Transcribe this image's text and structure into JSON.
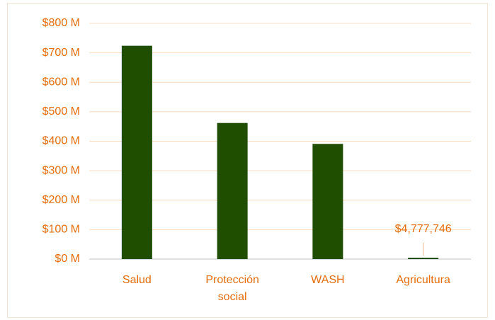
{
  "chart_data": {
    "type": "bar",
    "categories": [
      "Salud",
      "Protección social",
      "WASH",
      "Agricultura"
    ],
    "values": [
      724000000,
      462000000,
      391000000,
      4777746
    ],
    "value_labels": [
      null,
      null,
      null,
      "$4,777,746"
    ],
    "color": "#1f4e00",
    "ylim": [
      0,
      800000000
    ],
    "yticks": [
      {
        "value": 0,
        "label": "$0 M"
      },
      {
        "value": 100000000,
        "label": "$100 M"
      },
      {
        "value": 200000000,
        "label": "$200 M"
      },
      {
        "value": 300000000,
        "label": "$300 M"
      },
      {
        "value": 400000000,
        "label": "$400 M"
      },
      {
        "value": 500000000,
        "label": "$500 M"
      },
      {
        "value": 600000000,
        "label": "$600 M"
      },
      {
        "value": 700000000,
        "label": "$700 M"
      },
      {
        "value": 800000000,
        "label": "$800 M"
      }
    ],
    "grid": true
  }
}
